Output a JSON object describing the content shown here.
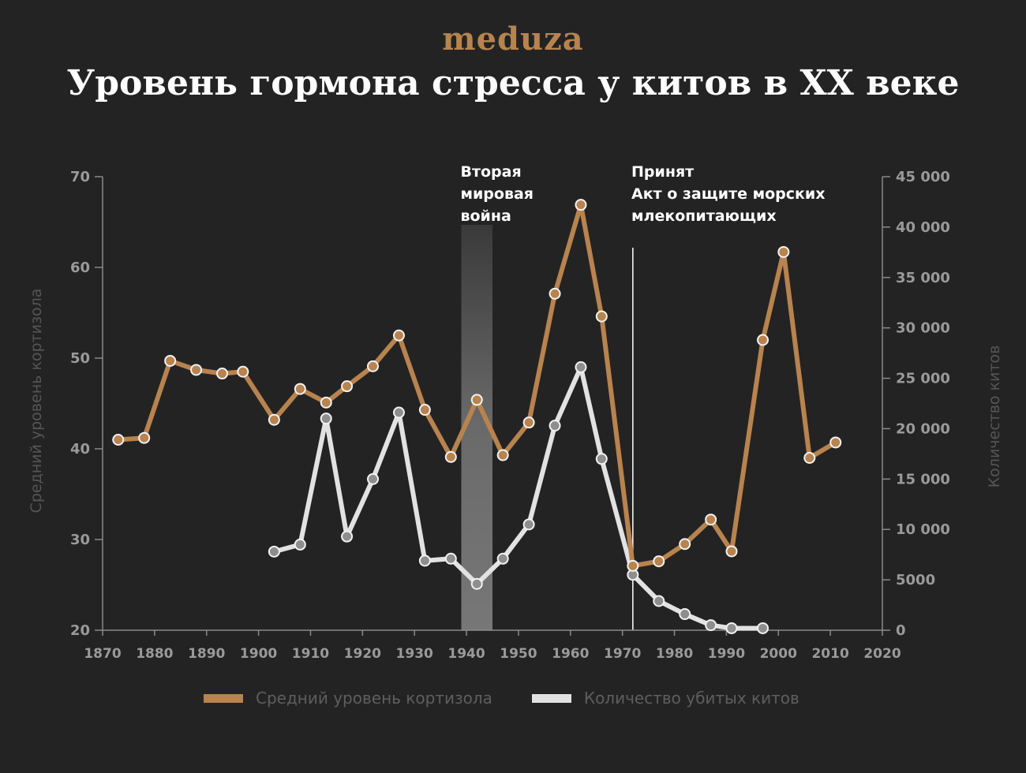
{
  "header": {
    "logo": "meduza",
    "title": "Уровень гормона стресса у китов в XX веке"
  },
  "chart_data": {
    "type": "line",
    "x_ticks": [
      1870,
      1880,
      1890,
      1900,
      1910,
      1920,
      1930,
      1940,
      1950,
      1960,
      1970,
      1980,
      1990,
      2000,
      2010,
      2020
    ],
    "xlim": [
      1870,
      2020
    ],
    "y_left": {
      "label": "Средний уровень кортизола",
      "lim": [
        20,
        70
      ],
      "ticks": [
        20,
        30,
        40,
        50,
        60,
        70
      ],
      "tick_labels": [
        "20",
        "30",
        "40",
        "50",
        "60",
        "70"
      ]
    },
    "y_right": {
      "label": "Количество китов",
      "lim": [
        0,
        45000
      ],
      "ticks": [
        0,
        5000,
        10000,
        15000,
        20000,
        25000,
        30000,
        35000,
        40000,
        45000
      ],
      "tick_labels": [
        "0",
        "5000",
        "10 000",
        "15 000",
        "20 000",
        "25 000",
        "30 000",
        "35 000",
        "40 000",
        "45 000"
      ]
    },
    "series": [
      {
        "name": "Средний уровень кортизола",
        "axis": "left",
        "color": "#b8834e",
        "x": [
          1873,
          1878,
          1883,
          1888,
          1893,
          1897,
          1903,
          1908,
          1913,
          1917,
          1922,
          1927,
          1932,
          1937,
          1942,
          1947,
          1952,
          1957,
          1962,
          1966,
          1972,
          1977,
          1982,
          1987,
          1991,
          1997,
          2001,
          2006,
          2011
        ],
        "y": [
          41,
          41.2,
          49.7,
          48.7,
          48.3,
          48.5,
          43.2,
          46.6,
          45.1,
          46.9,
          49.1,
          52.5,
          44.3,
          39.1,
          45.4,
          39.3,
          42.9,
          57.1,
          66.9,
          54.6,
          27.1,
          27.6,
          29.5,
          32.2,
          28.7,
          52,
          61.7,
          39,
          40.7
        ]
      },
      {
        "name": "Количество убитых китов",
        "axis": "right",
        "color": "#e2e2e2",
        "x": [
          1903,
          1908,
          1913,
          1917,
          1922,
          1927,
          1932,
          1937,
          1942,
          1947,
          1952,
          1957,
          1962,
          1966,
          1972,
          1977,
          1982,
          1987,
          1991,
          1997
        ],
        "y": [
          7800,
          8500,
          21000,
          9300,
          15000,
          21600,
          6900,
          7100,
          4600,
          7100,
          10500,
          20300,
          26100,
          17000,
          5500,
          2900,
          1600,
          500,
          200,
          200
        ]
      }
    ],
    "annotations": [
      {
        "type": "band",
        "x0": 1939,
        "x1": 1945,
        "text": [
          "Вторая",
          "мировая",
          "война"
        ]
      },
      {
        "type": "vline",
        "x": 1972,
        "text": [
          "Принят",
          "Акт о защите морских",
          "млекопитающих"
        ]
      }
    ]
  },
  "legend": {
    "items": [
      {
        "label": "Средний уровень кортизола",
        "color": "#b8834e"
      },
      {
        "label": "Количество убитых китов",
        "color": "#e2e2e2"
      }
    ]
  }
}
